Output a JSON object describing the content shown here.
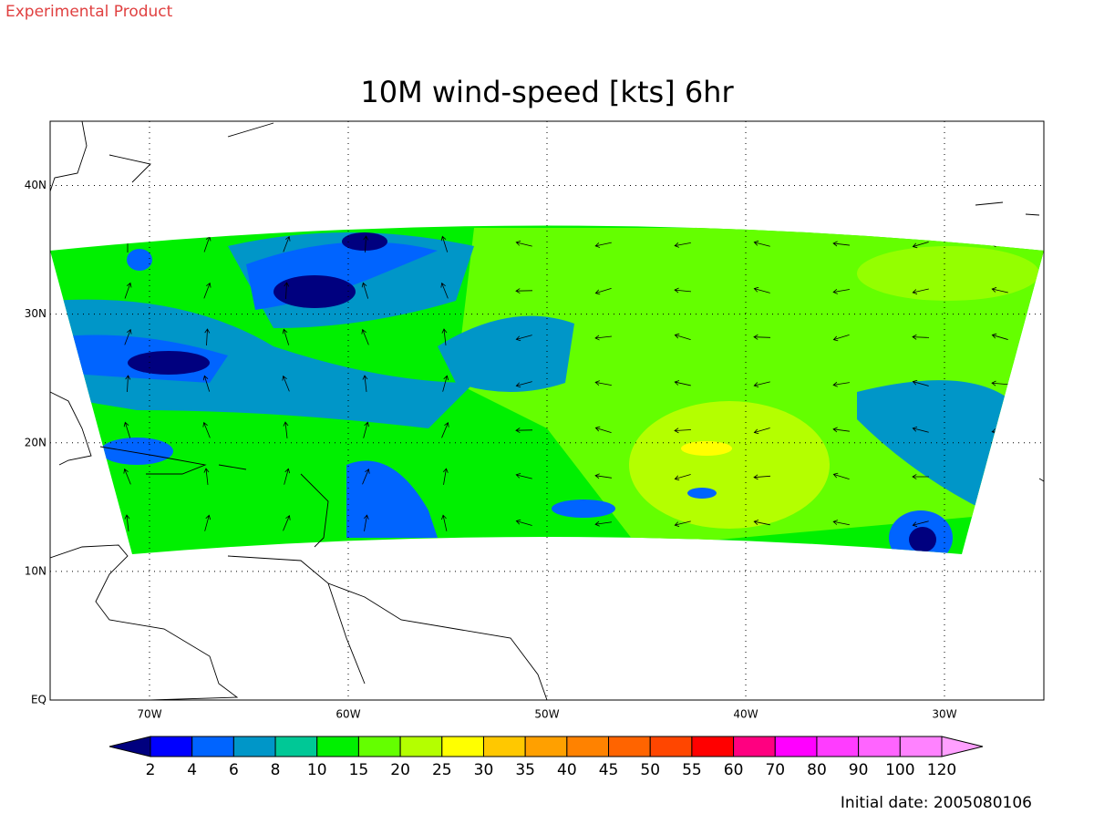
{
  "header": {
    "note": "Experimental Product"
  },
  "chart_data": {
    "type": "map",
    "title": "10M wind-speed [kts] 6hr",
    "xlim": [
      -75,
      -25
    ],
    "ylim": [
      0,
      45
    ],
    "xticks": [
      {
        "value": -70,
        "label": "70W"
      },
      {
        "value": -60,
        "label": "60W"
      },
      {
        "value": -50,
        "label": "50W"
      },
      {
        "value": -40,
        "label": "40W"
      },
      {
        "value": -30,
        "label": "30W"
      }
    ],
    "yticks": [
      {
        "value": 0,
        "label": "EQ"
      },
      {
        "value": 10,
        "label": "10N"
      },
      {
        "value": 20,
        "label": "20N"
      },
      {
        "value": 30,
        "label": "30N"
      },
      {
        "value": 40,
        "label": "40N"
      }
    ],
    "grid": true,
    "colorbar": {
      "levels": [
        2,
        4,
        6,
        8,
        10,
        15,
        20,
        25,
        30,
        35,
        40,
        45,
        50,
        55,
        60,
        70,
        80,
        90,
        100,
        120
      ],
      "colors": [
        "#00007f",
        "#0000ff",
        "#0064ff",
        "#0096c8",
        "#00c896",
        "#00f000",
        "#64ff00",
        "#b4ff00",
        "#ffff00",
        "#ffc800",
        "#ffa000",
        "#ff8200",
        "#ff6400",
        "#ff4600",
        "#ff0000",
        "#ff0080",
        "#ff00ff",
        "#ff3cff",
        "#ff64ff",
        "#ff82ff",
        "#ffa0ff"
      ]
    }
  },
  "footer": {
    "date": "Initial date: 2005080106"
  }
}
